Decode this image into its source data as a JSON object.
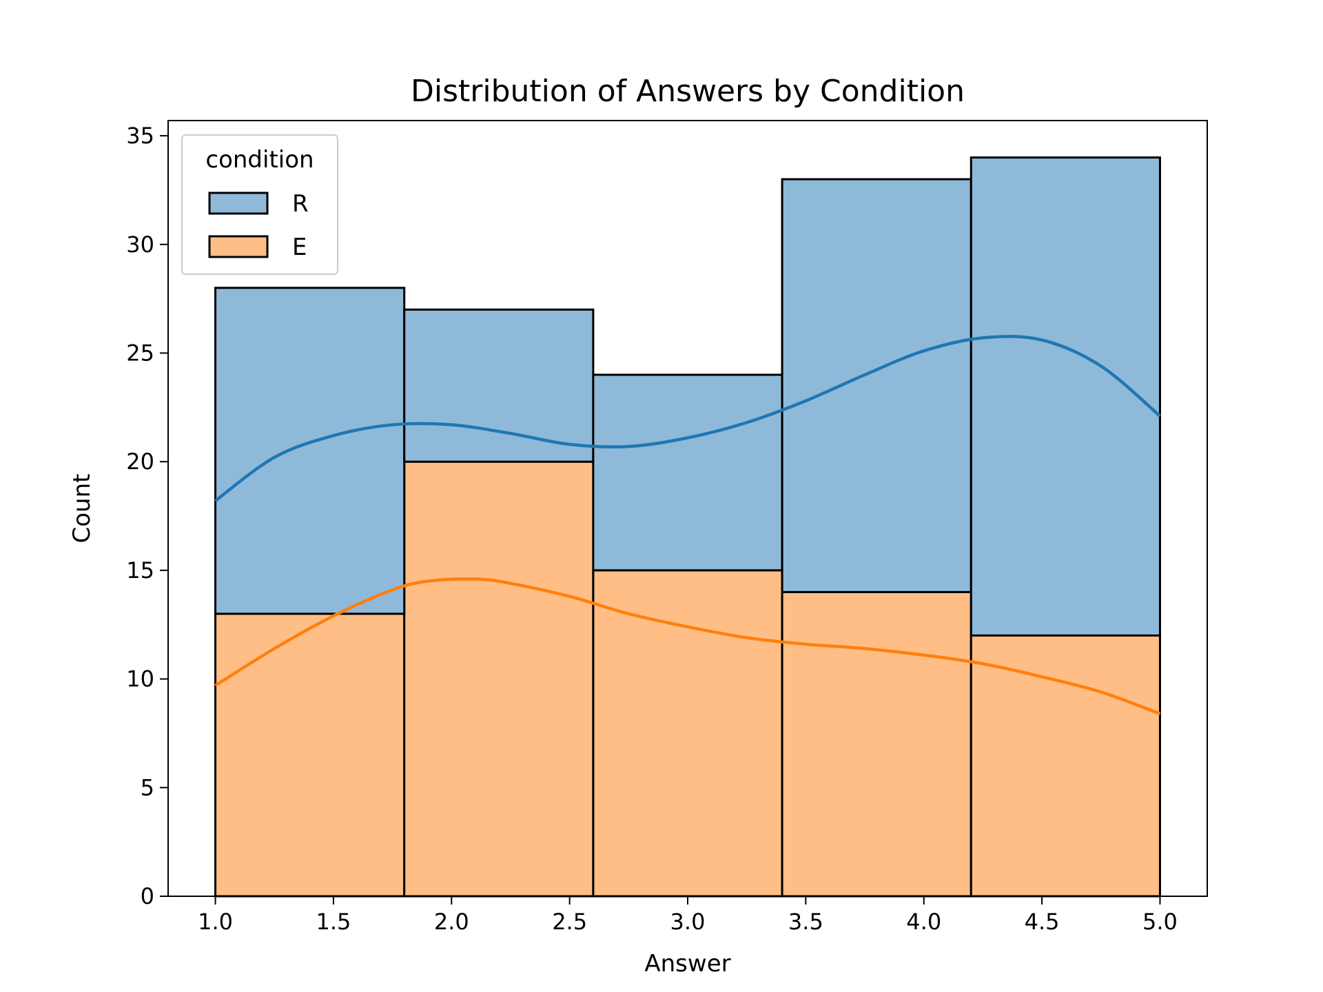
{
  "chart_data": {
    "type": "bar",
    "stacked": true,
    "title": "Distribution of Answers by Condition",
    "xlabel": "Answer",
    "ylabel": "Count",
    "xlim": [
      0.8,
      5.2
    ],
    "ylim": [
      0,
      35.7
    ],
    "x_ticks": [
      "1.0",
      "1.5",
      "2.0",
      "2.5",
      "3.0",
      "3.5",
      "4.0",
      "4.5",
      "5.0"
    ],
    "y_ticks": [
      "0",
      "5",
      "10",
      "15",
      "20",
      "25",
      "30",
      "35"
    ],
    "bin_edges": [
      1.0,
      1.8,
      2.6,
      3.4,
      4.2,
      5.0
    ],
    "series": [
      {
        "name": "E",
        "color": "#ffbe86",
        "line_color": "#ff7f0e",
        "values": [
          13,
          20,
          15,
          14,
          12
        ],
        "kde": {
          "x": [
            1.0,
            1.25,
            1.5,
            1.75,
            1.9,
            2.1,
            2.25,
            2.5,
            2.75,
            3.0,
            3.25,
            3.5,
            3.75,
            4.0,
            4.25,
            4.5,
            4.75,
            5.0
          ],
          "y": [
            9.7,
            11.4,
            12.9,
            14.1,
            14.5,
            14.6,
            14.4,
            13.8,
            13.0,
            12.4,
            11.9,
            11.6,
            11.4,
            11.1,
            10.7,
            10.1,
            9.4,
            8.4
          ]
        }
      },
      {
        "name": "R",
        "color": "#8fb9d9",
        "line_color": "#1f77b4",
        "values": [
          15,
          7,
          9,
          19,
          22
        ],
        "kde": {
          "x": [
            1.0,
            1.25,
            1.5,
            1.75,
            2.0,
            2.25,
            2.5,
            2.75,
            3.0,
            3.25,
            3.5,
            3.75,
            4.0,
            4.25,
            4.5,
            4.75,
            5.0
          ],
          "y": [
            18.2,
            20.2,
            21.2,
            21.7,
            21.7,
            21.3,
            20.8,
            20.7,
            21.1,
            21.8,
            22.8,
            24.0,
            25.1,
            25.7,
            25.6,
            24.4,
            22.1
          ]
        }
      }
    ],
    "legend": {
      "title": "condition",
      "entries": [
        "R",
        "E"
      ],
      "position": "top-left"
    }
  }
}
